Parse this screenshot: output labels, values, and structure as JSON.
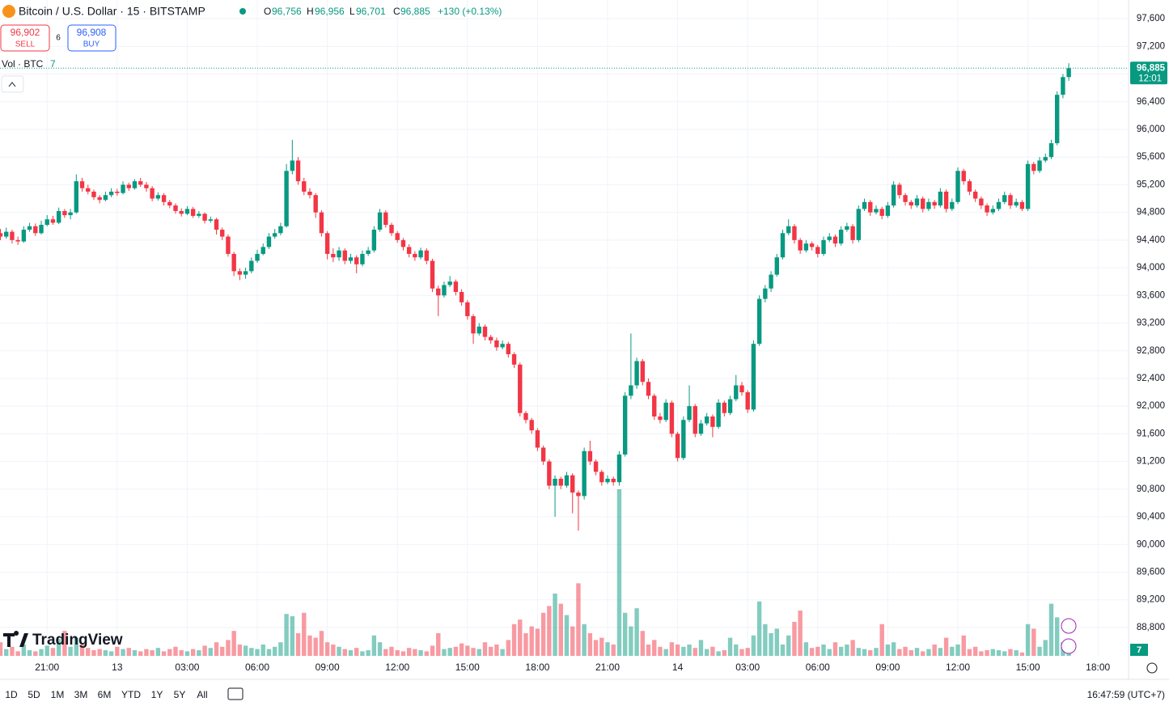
{
  "header": {
    "symbol": "Bitcoin / U.S. Dollar · 15 · BITSTAMP",
    "o_label": "O",
    "o": "96,756",
    "h_label": "H",
    "h": "96,956",
    "l_label": "L",
    "l": "96,701",
    "c_label": "C",
    "c": "96,885",
    "change": "+130 (+0.13%)",
    "sell_price": "96,902",
    "sell": "SELL",
    "spread": "6",
    "buy_price": "96,908",
    "buy": "BUY",
    "vol_label": "Vol · BTC",
    "vol_value": "7",
    "logo": "TradingView"
  },
  "chart_data": {
    "type": "candlestick",
    "up_color": "#089981",
    "down_color": "#f23645",
    "grid": true,
    "ylim": [
      88390,
      97870
    ],
    "xlim": [
      0,
      194
    ],
    "yticks": [
      {
        "value": 88800,
        "label": "88,800"
      },
      {
        "value": 89200,
        "label": "89,200"
      },
      {
        "value": 89600,
        "label": "89,600"
      },
      {
        "value": 90000,
        "label": "90,000"
      },
      {
        "value": 90400,
        "label": "90,400"
      },
      {
        "value": 90800,
        "label": "90,800"
      },
      {
        "value": 91200,
        "label": "91,200"
      },
      {
        "value": 91600,
        "label": "91,600"
      },
      {
        "value": 92000,
        "label": "92,000"
      },
      {
        "value": 92400,
        "label": "92,400"
      },
      {
        "value": 92800,
        "label": "92,800"
      },
      {
        "value": 93200,
        "label": "93,200"
      },
      {
        "value": 93600,
        "label": "93,600"
      },
      {
        "value": 94000,
        "label": "94,000"
      },
      {
        "value": 94400,
        "label": "94,400"
      },
      {
        "value": 94800,
        "label": "94,800"
      },
      {
        "value": 95200,
        "label": "95,200"
      },
      {
        "value": 95600,
        "label": "95,600"
      },
      {
        "value": 96000,
        "label": "96,000"
      },
      {
        "value": 96400,
        "label": "96,400"
      },
      {
        "value": 96800,
        "label": "96,800"
      },
      {
        "value": 97200,
        "label": "97,200"
      },
      {
        "value": 97600,
        "label": "97,600"
      }
    ],
    "xticks": [
      {
        "value": 8,
        "label": "21:00"
      },
      {
        "value": 20,
        "label": "13"
      },
      {
        "value": 32,
        "label": "03:00"
      },
      {
        "value": 44,
        "label": "06:00"
      },
      {
        "value": 56,
        "label": "09:00"
      },
      {
        "value": 68,
        "label": "12:00"
      },
      {
        "value": 80,
        "label": "15:00"
      },
      {
        "value": 92,
        "label": "18:00"
      },
      {
        "value": 104,
        "label": "21:00"
      },
      {
        "value": 116,
        "label": "14"
      },
      {
        "value": 128,
        "label": "03:00"
      },
      {
        "value": 140,
        "label": "06:00"
      },
      {
        "value": 152,
        "label": "09:00"
      },
      {
        "value": 164,
        "label": "12:00"
      },
      {
        "value": 176,
        "label": "15:00"
      },
      {
        "value": 188,
        "label": "18:00"
      }
    ],
    "last_price_label": "96,885",
    "countdown": "12:01",
    "candles": [
      [
        94500,
        94560,
        94400,
        94450
      ],
      [
        94450,
        94580,
        94420,
        94520
      ],
      [
        94520,
        94550,
        94350,
        94400
      ],
      [
        94400,
        94450,
        94330,
        94380
      ],
      [
        94380,
        94600,
        94360,
        94550
      ],
      [
        94550,
        94650,
        94520,
        94600
      ],
      [
        94600,
        94640,
        94460,
        94500
      ],
      [
        94500,
        94680,
        94480,
        94620
      ],
      [
        94620,
        94760,
        94600,
        94700
      ],
      [
        94700,
        94750,
        94620,
        94650
      ],
      [
        94650,
        94870,
        94630,
        94820
      ],
      [
        94820,
        94850,
        94720,
        94760
      ],
      [
        94760,
        94850,
        94700,
        94800
      ],
      [
        94800,
        95350,
        94780,
        95250
      ],
      [
        95250,
        95300,
        95100,
        95150
      ],
      [
        95150,
        95200,
        95060,
        95100
      ],
      [
        95100,
        95130,
        94980,
        95020
      ],
      [
        95020,
        95050,
        94930,
        94980
      ],
      [
        94980,
        95100,
        94960,
        95050
      ],
      [
        95050,
        95150,
        95020,
        95100
      ],
      [
        95100,
        95140,
        95040,
        95080
      ],
      [
        95080,
        95250,
        95060,
        95200
      ],
      [
        95200,
        95230,
        95110,
        95150
      ],
      [
        95150,
        95280,
        95130,
        95250
      ],
      [
        95250,
        95300,
        95170,
        95200
      ],
      [
        95200,
        95240,
        95100,
        95150
      ],
      [
        95150,
        95180,
        94960,
        95000
      ],
      [
        95000,
        95090,
        94970,
        95050
      ],
      [
        95050,
        95080,
        94900,
        94950
      ],
      [
        94950,
        94980,
        94860,
        94900
      ],
      [
        94900,
        94930,
        94780,
        94820
      ],
      [
        94820,
        94860,
        94740,
        94780
      ],
      [
        94780,
        94890,
        94760,
        94850
      ],
      [
        94850,
        94880,
        94720,
        94750
      ],
      [
        94750,
        94820,
        94720,
        94780
      ],
      [
        94780,
        94800,
        94640,
        94680
      ],
      [
        94680,
        94740,
        94650,
        94700
      ],
      [
        94700,
        94720,
        94480,
        94550
      ],
      [
        94550,
        94580,
        94400,
        94450
      ],
      [
        94450,
        94480,
        94160,
        94200
      ],
      [
        94200,
        94230,
        93880,
        93950
      ],
      [
        93950,
        93990,
        93820,
        93900
      ],
      [
        93900,
        94000,
        93840,
        93950
      ],
      [
        93950,
        94150,
        93920,
        94100
      ],
      [
        94100,
        94260,
        94070,
        94200
      ],
      [
        94200,
        94350,
        94180,
        94300
      ],
      [
        94300,
        94500,
        94270,
        94450
      ],
      [
        94450,
        94560,
        94420,
        94500
      ],
      [
        94500,
        94650,
        94470,
        94600
      ],
      [
        94600,
        95500,
        94580,
        95400
      ],
      [
        95400,
        95850,
        95350,
        95550
      ],
      [
        95550,
        95600,
        95200,
        95250
      ],
      [
        95250,
        95300,
        95050,
        95100
      ],
      [
        95100,
        95150,
        95000,
        95050
      ],
      [
        95050,
        95080,
        94720,
        94800
      ],
      [
        94800,
        94830,
        94450,
        94500
      ],
      [
        94500,
        94530,
        94120,
        94200
      ],
      [
        94200,
        94280,
        94080,
        94150
      ],
      [
        94150,
        94300,
        94100,
        94250
      ],
      [
        94250,
        94280,
        94050,
        94100
      ],
      [
        94100,
        94200,
        94060,
        94150
      ],
      [
        94150,
        94180,
        93920,
        94050
      ],
      [
        94050,
        94250,
        94020,
        94200
      ],
      [
        94200,
        94300,
        94170,
        94250
      ],
      [
        94250,
        94600,
        94220,
        94550
      ],
      [
        94550,
        94850,
        94520,
        94800
      ],
      [
        94800,
        94830,
        94580,
        94620
      ],
      [
        94620,
        94650,
        94460,
        94500
      ],
      [
        94500,
        94530,
        94360,
        94400
      ],
      [
        94400,
        94430,
        94250,
        94300
      ],
      [
        94300,
        94340,
        94150,
        94200
      ],
      [
        94200,
        94240,
        94100,
        94150
      ],
      [
        94150,
        94290,
        94120,
        94250
      ],
      [
        94250,
        94280,
        94050,
        94100
      ],
      [
        94100,
        94130,
        93650,
        93700
      ],
      [
        93700,
        93740,
        93300,
        93600
      ],
      [
        93600,
        93800,
        93570,
        93750
      ],
      [
        93750,
        93880,
        93720,
        93800
      ],
      [
        93800,
        93830,
        93600,
        93650
      ],
      [
        93650,
        93690,
        93450,
        93500
      ],
      [
        93500,
        93530,
        93250,
        93300
      ],
      [
        93300,
        93330,
        92900,
        93050
      ],
      [
        93050,
        93200,
        93020,
        93150
      ],
      [
        93150,
        93180,
        92950,
        93000
      ],
      [
        93000,
        93030,
        92900,
        92950
      ],
      [
        92950,
        92990,
        92800,
        92850
      ],
      [
        92850,
        92950,
        92820,
        92900
      ],
      [
        92900,
        92930,
        92700,
        92750
      ],
      [
        92750,
        92780,
        92550,
        92600
      ],
      [
        92600,
        92630,
        91850,
        91900
      ],
      [
        91900,
        91930,
        91750,
        91800
      ],
      [
        91800,
        91830,
        91600,
        91650
      ],
      [
        91650,
        91680,
        91350,
        91400
      ],
      [
        91400,
        91430,
        91150,
        91200
      ],
      [
        91200,
        91230,
        90800,
        90850
      ],
      [
        90850,
        91000,
        90400,
        90950
      ],
      [
        90950,
        90980,
        90800,
        90850
      ],
      [
        90850,
        91050,
        90820,
        91000
      ],
      [
        91000,
        91030,
        90450,
        90750
      ],
      [
        90750,
        90780,
        90200,
        90700
      ],
      [
        90700,
        91400,
        90650,
        91350
      ],
      [
        91350,
        91500,
        91150,
        91200
      ],
      [
        91200,
        91230,
        91000,
        91050
      ],
      [
        91050,
        91080,
        90850,
        90900
      ],
      [
        90900,
        91000,
        90870,
        90950
      ],
      [
        90950,
        90980,
        90850,
        90900
      ],
      [
        90900,
        91350,
        90850,
        91300
      ],
      [
        91300,
        92200,
        91270,
        92150
      ],
      [
        92150,
        93050,
        92100,
        92300
      ],
      [
        92300,
        92700,
        92250,
        92650
      ],
      [
        92650,
        92680,
        92300,
        92350
      ],
      [
        92350,
        92400,
        92100,
        92150
      ],
      [
        92150,
        92180,
        91800,
        91850
      ],
      [
        91850,
        91900,
        91750,
        91800
      ],
      [
        91800,
        92100,
        91770,
        92050
      ],
      [
        92050,
        92080,
        91550,
        91600
      ],
      [
        91600,
        91630,
        91200,
        91250
      ],
      [
        91250,
        91850,
        91220,
        91800
      ],
      [
        91800,
        92300,
        91770,
        92000
      ],
      [
        92000,
        92030,
        91550,
        91600
      ],
      [
        91600,
        91800,
        91570,
        91750
      ],
      [
        91750,
        91900,
        91720,
        91850
      ],
      [
        91850,
        91880,
        91550,
        91700
      ],
      [
        91700,
        92100,
        91670,
        92050
      ],
      [
        92050,
        92080,
        91850,
        91900
      ],
      [
        91900,
        92150,
        91870,
        92100
      ],
      [
        92100,
        92450,
        92070,
        92300
      ],
      [
        92300,
        92350,
        92150,
        92200
      ],
      [
        92200,
        92230,
        91900,
        91950
      ],
      [
        91950,
        92950,
        91920,
        92900
      ],
      [
        92900,
        93600,
        92870,
        93550
      ],
      [
        93550,
        93750,
        93500,
        93700
      ],
      [
        93700,
        93950,
        93650,
        93900
      ],
      [
        93900,
        94200,
        93870,
        94150
      ],
      [
        94150,
        94550,
        94120,
        94500
      ],
      [
        94500,
        94700,
        94470,
        94600
      ],
      [
        94600,
        94630,
        94350,
        94400
      ],
      [
        94400,
        94430,
        94200,
        94250
      ],
      [
        94250,
        94400,
        94220,
        94350
      ],
      [
        94350,
        94380,
        94250,
        94300
      ],
      [
        94300,
        94330,
        94150,
        94200
      ],
      [
        94200,
        94450,
        94170,
        94400
      ],
      [
        94400,
        94500,
        94370,
        94450
      ],
      [
        94450,
        94480,
        94300,
        94350
      ],
      [
        94350,
        94600,
        94320,
        94550
      ],
      [
        94550,
        94650,
        94520,
        94600
      ],
      [
        94600,
        94630,
        94350,
        94400
      ],
      [
        94400,
        94900,
        94370,
        94850
      ],
      [
        94850,
        95000,
        94820,
        94950
      ],
      [
        94950,
        94980,
        94750,
        94800
      ],
      [
        94800,
        94900,
        94770,
        94850
      ],
      [
        94850,
        94880,
        94700,
        94750
      ],
      [
        94750,
        94950,
        94720,
        94900
      ],
      [
        94900,
        95250,
        94870,
        95200
      ],
      [
        95200,
        95230,
        95000,
        95050
      ],
      [
        95050,
        95080,
        94900,
        94950
      ],
      [
        94950,
        94980,
        94850,
        94900
      ],
      [
        94900,
        95050,
        94870,
        95000
      ],
      [
        95000,
        95030,
        94800,
        94850
      ],
      [
        94850,
        95000,
        94820,
        94950
      ],
      [
        94950,
        94980,
        94850,
        94900
      ],
      [
        94900,
        95150,
        94870,
        95100
      ],
      [
        95100,
        95130,
        94800,
        94850
      ],
      [
        94850,
        95000,
        94820,
        94950
      ],
      [
        94950,
        95450,
        94920,
        95400
      ],
      [
        95400,
        95430,
        95200,
        95250
      ],
      [
        95250,
        95280,
        95050,
        95100
      ],
      [
        95100,
        95130,
        94950,
        95000
      ],
      [
        95000,
        95030,
        94850,
        94900
      ],
      [
        94900,
        94930,
        94750,
        94800
      ],
      [
        94800,
        94900,
        94770,
        94850
      ],
      [
        94850,
        95000,
        94820,
        94950
      ],
      [
        94950,
        95100,
        94920,
        95050
      ],
      [
        95050,
        95080,
        94850,
        94900
      ],
      [
        94900,
        95000,
        94870,
        94950
      ],
      [
        94950,
        94980,
        94820,
        94850
      ],
      [
        94850,
        95550,
        94820,
        95500
      ],
      [
        95500,
        95530,
        95350,
        95400
      ],
      [
        95400,
        95600,
        95370,
        95550
      ],
      [
        95550,
        95650,
        95520,
        95600
      ],
      [
        95600,
        95850,
        95570,
        95800
      ],
      [
        95800,
        96550,
        95770,
        96500
      ],
      [
        96500,
        96800,
        96450,
        96756
      ],
      [
        96756,
        96956,
        96701,
        96885
      ]
    ],
    "volume": [
      12,
      6,
      8,
      4,
      10,
      5,
      4,
      6,
      9,
      7,
      15,
      22,
      8,
      16,
      10,
      7,
      5,
      6,
      5,
      4,
      8,
      6,
      7,
      5,
      4,
      6,
      5,
      7,
      4,
      6,
      8,
      5,
      4,
      6,
      5,
      9,
      7,
      12,
      8,
      14,
      22,
      10,
      9,
      7,
      6,
      10,
      6,
      8,
      12,
      37,
      35,
      20,
      38,
      18,
      16,
      22,
      12,
      10,
      8,
      6,
      5,
      7,
      4,
      5,
      18,
      12,
      6,
      8,
      5,
      4,
      7,
      6,
      5,
      4,
      9,
      20,
      6,
      7,
      8,
      11,
      9,
      7,
      6,
      12,
      8,
      10,
      6,
      14,
      28,
      32,
      20,
      26,
      24,
      38,
      44,
      55,
      46,
      36,
      26,
      64,
      28,
      20,
      14,
      16,
      12,
      10,
      147,
      38,
      26,
      42,
      22,
      10,
      14,
      8,
      6,
      12,
      10,
      8,
      10,
      7,
      14,
      6,
      8,
      4,
      5,
      16,
      10,
      6,
      7,
      18,
      48,
      28,
      20,
      24,
      10,
      18,
      30,
      40,
      12,
      7,
      8,
      10,
      6,
      12,
      8,
      10,
      14,
      7,
      6,
      5,
      7,
      28,
      10,
      12,
      6,
      8,
      5,
      7,
      4,
      6,
      10,
      7,
      16,
      8,
      10,
      18,
      6,
      8,
      4,
      5,
      6,
      5,
      4,
      6,
      5,
      3,
      28,
      24,
      8,
      14,
      46,
      34,
      12,
      7
    ]
  },
  "footer": {
    "periods": [
      "1D",
      "5D",
      "1M",
      "3M",
      "6M",
      "YTD",
      "1Y",
      "5Y",
      "All"
    ],
    "clock": "16:47:59 (UTC+7)"
  }
}
